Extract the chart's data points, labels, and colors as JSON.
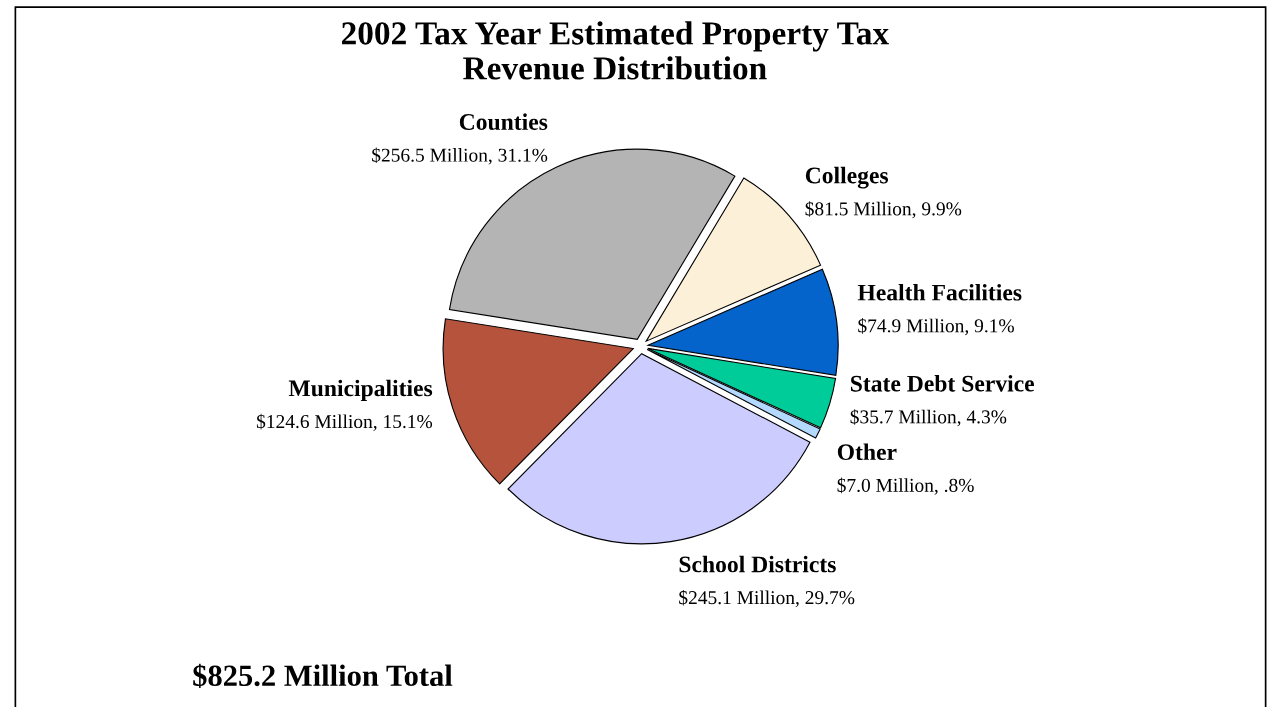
{
  "chart_data": {
    "type": "pie",
    "title": "2002 Tax Year Estimated Property Tax\nRevenue Distribution",
    "categories": [
      "Counties",
      "Colleges",
      "Health Facilities",
      "State Debt Service",
      "Other",
      "School Districts",
      "Municipalities"
    ],
    "values": [
      256.5,
      81.5,
      74.9,
      35.7,
      7.0,
      245.1,
      124.6
    ],
    "colors": [
      "#b4b4b4",
      "#fdf0d8",
      "#0563cc",
      "#00cc99",
      "#b3d9ff",
      "#ccccff",
      "#b5533c"
    ],
    "value_labels": [
      "$256.5 Million, 31.1%",
      "$81.5 Million, 9.9%",
      "$74.9 Million, 9.1%",
      "$35.7 Million, 4.3%",
      "$7.0 Million, .8%",
      "$245.1 Million, 29.7%",
      "$124.6 Million, 15.1%"
    ],
    "annotations": [
      "$825.2 Million Total"
    ]
  }
}
